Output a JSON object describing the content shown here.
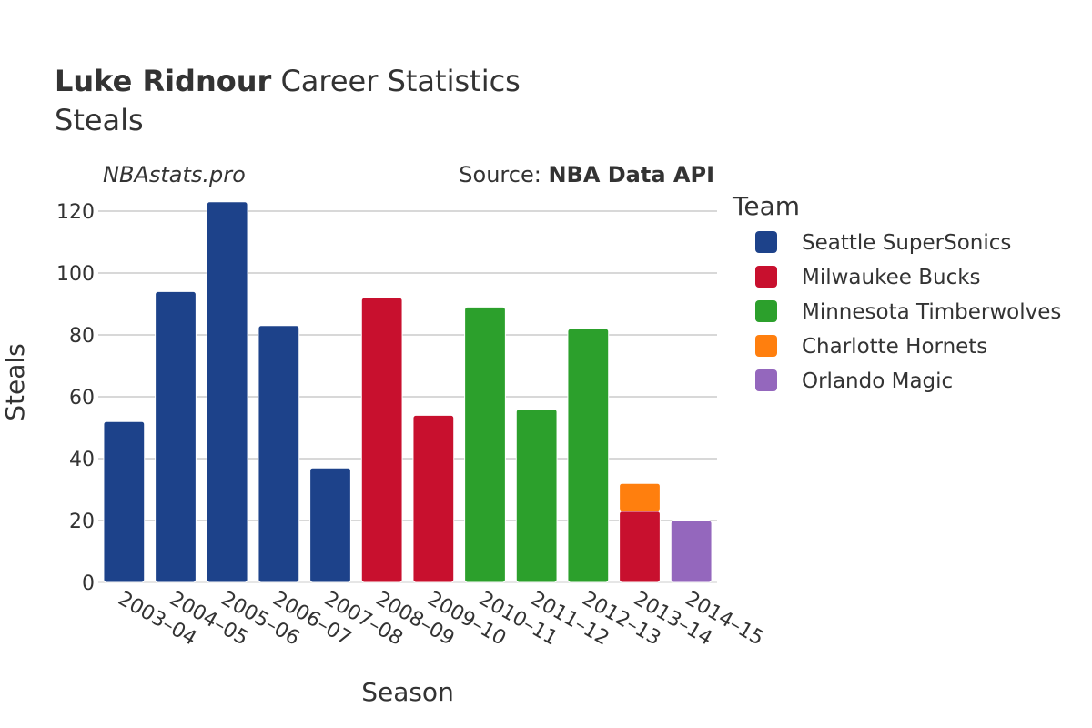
{
  "chart_data": {
    "type": "bar",
    "stacked": true,
    "title_bold": "Luke Ridnour",
    "title_rest": " Career Statistics",
    "subtitle": "Steals",
    "watermark": "NBAstats.pro",
    "source_prefix": "Source: ",
    "source_name": "NBA Data API",
    "xlabel": "Season",
    "ylabel": "Steals",
    "ylim": [
      0,
      125
    ],
    "yticks": [
      0,
      20,
      40,
      60,
      80,
      100,
      120
    ],
    "categories": [
      "2003–04",
      "2004–05",
      "2005–06",
      "2006–07",
      "2007–08",
      "2008–09",
      "2009–10",
      "2010–11",
      "2011–12",
      "2012–13",
      "2013–14",
      "2014–15"
    ],
    "legend_title": "Team",
    "legend_position": "right",
    "series": [
      {
        "name": "Seattle SuperSonics",
        "color": "#1d428a",
        "values": [
          52,
          94,
          123,
          83,
          37,
          0,
          0,
          0,
          0,
          0,
          0,
          0
        ]
      },
      {
        "name": "Milwaukee Bucks",
        "color": "#c8102e",
        "values": [
          0,
          0,
          0,
          0,
          0,
          92,
          54,
          0,
          0,
          0,
          23,
          0
        ]
      },
      {
        "name": "Minnesota Timberwolves",
        "color": "#2ca02c",
        "values": [
          0,
          0,
          0,
          0,
          0,
          0,
          0,
          89,
          56,
          82,
          0,
          0
        ]
      },
      {
        "name": "Charlotte Hornets",
        "color": "#ff7f0e",
        "values": [
          0,
          0,
          0,
          0,
          0,
          0,
          0,
          0,
          0,
          0,
          9,
          0
        ]
      },
      {
        "name": "Orlando Magic",
        "color": "#9467bd",
        "values": [
          0,
          0,
          0,
          0,
          0,
          0,
          0,
          0,
          0,
          0,
          0,
          20
        ]
      }
    ]
  }
}
